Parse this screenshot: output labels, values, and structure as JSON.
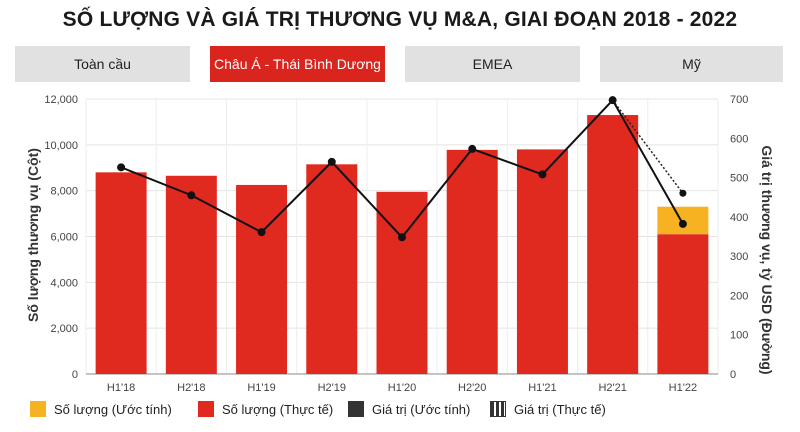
{
  "title": "SỐ LƯỢNG VÀ GIÁ TRỊ THƯƠNG VỤ M&A, GIAI ĐOẠN 2018 - 2022",
  "tabs": [
    {
      "label": "Toàn cầu",
      "active": false
    },
    {
      "label": "Châu Á - Thái Bình Dương",
      "active": true
    },
    {
      "label": "EMEA",
      "active": false
    },
    {
      "label": "Mỹ",
      "active": false
    }
  ],
  "colors": {
    "actual_bar": "#e0291f",
    "estimate_bar": "#f7b221",
    "value_line": "#111111",
    "tab_active": "#d9251d",
    "tab_inactive": "#e1e1e1"
  },
  "legend": [
    {
      "label": "Số lượng (Ước tính)",
      "color": "#f7b221",
      "style": "box"
    },
    {
      "label": "Số lượng (Thực tế)",
      "color": "#e0291f",
      "style": "box"
    },
    {
      "label": "Giá trị (Ước tính)",
      "color": "#333333",
      "style": "box"
    },
    {
      "label": "Giá trị (Thực tế)",
      "color": "#333333",
      "style": "dotted-box"
    }
  ],
  "chart_data": {
    "type": "bar",
    "categories": [
      "H1'18",
      "H2'18",
      "H1'19",
      "H2'19",
      "H1'20",
      "H2'20",
      "H1'21",
      "H2'21",
      "H1'22"
    ],
    "ylabel": "Số lượng thương vụ (Cột)",
    "y2label": "Giá trị thương vụ, tỷ USD (Đường)",
    "ylim": [
      0,
      12000
    ],
    "y2lim": [
      0,
      700
    ],
    "yticks": [
      "0",
      "2,000",
      "4,000",
      "6,000",
      "8,000",
      "10,000",
      "12,000"
    ],
    "y2ticks": [
      "0",
      "100",
      "200",
      "300",
      "400",
      "500",
      "600",
      "700"
    ],
    "series": [
      {
        "name": "Số lượng (Thực tế)",
        "kind": "bar",
        "axis": "left",
        "values": [
          8800,
          8650,
          8250,
          9150,
          7950,
          9780,
          9800,
          11300,
          6100
        ]
      },
      {
        "name": "Số lượng (Ước tính)",
        "kind": "bar-stack",
        "axis": "left",
        "values": [
          0,
          0,
          0,
          0,
          0,
          0,
          0,
          0,
          1200
        ]
      },
      {
        "name": "Giá trị (Thực tế)",
        "kind": "line",
        "axis": "right",
        "values": [
          526,
          455,
          361,
          540,
          348,
          573,
          508,
          697,
          382
        ]
      },
      {
        "name": "Giá trị (Ước tính)",
        "kind": "line-dotted",
        "axis": "right",
        "points": [
          {
            "x": "H2'21",
            "y": 697
          },
          {
            "x": "H1'22",
            "y": 460
          }
        ]
      }
    ],
    "grid": true,
    "legend_position": "bottom"
  }
}
